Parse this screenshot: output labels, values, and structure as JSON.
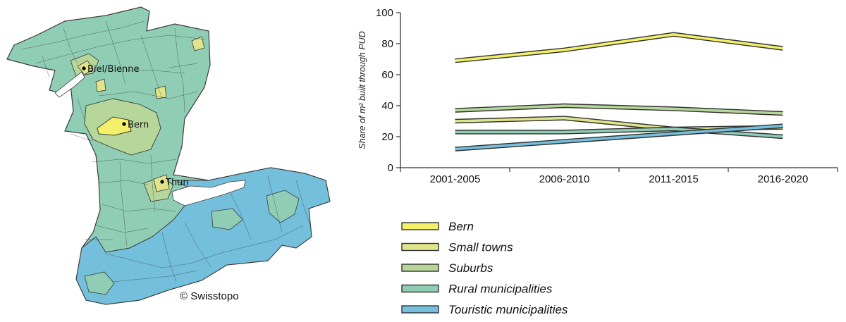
{
  "map": {
    "cities": [
      {
        "name": "Biel/Bienne",
        "category": "Small towns"
      },
      {
        "name": "Bern",
        "category": "Bern"
      },
      {
        "name": "Thun",
        "category": "Small towns"
      }
    ],
    "credit": "© Swisstopo",
    "colors": {
      "bern": "#f4f06a",
      "small_towns": "#e0e58a",
      "suburbs": "#b7d79a",
      "rural": "#8fcdb4",
      "touristic": "#74bfdc",
      "lake": "#ffffff",
      "border": "#3a3a3a"
    }
  },
  "chart_data": {
    "type": "line",
    "categories": [
      "2001-2005",
      "2006-2010",
      "2011-2015",
      "2016-2020"
    ],
    "ylabel": "Share of m² built through PUD",
    "ylim": [
      0,
      100
    ],
    "yticks": [
      0,
      20,
      40,
      60,
      80,
      100
    ],
    "grid": false,
    "legend_position": "bottom",
    "series": [
      {
        "name": "Bern",
        "color": "#f4f06a",
        "values": [
          69,
          76,
          86,
          77
        ]
      },
      {
        "name": "Small towns",
        "color": "#e0e58a",
        "values": [
          30,
          32,
          25,
          26
        ]
      },
      {
        "name": "Suburbs",
        "color": "#b7d79a",
        "values": [
          37,
          40,
          38,
          35
        ]
      },
      {
        "name": "Rural municipalities",
        "color": "#8fcdb4",
        "values": [
          23,
          23,
          25,
          20
        ]
      },
      {
        "name": "Touristic municipalities",
        "color": "#74bfdc",
        "values": [
          12,
          17,
          22,
          27
        ]
      }
    ]
  }
}
